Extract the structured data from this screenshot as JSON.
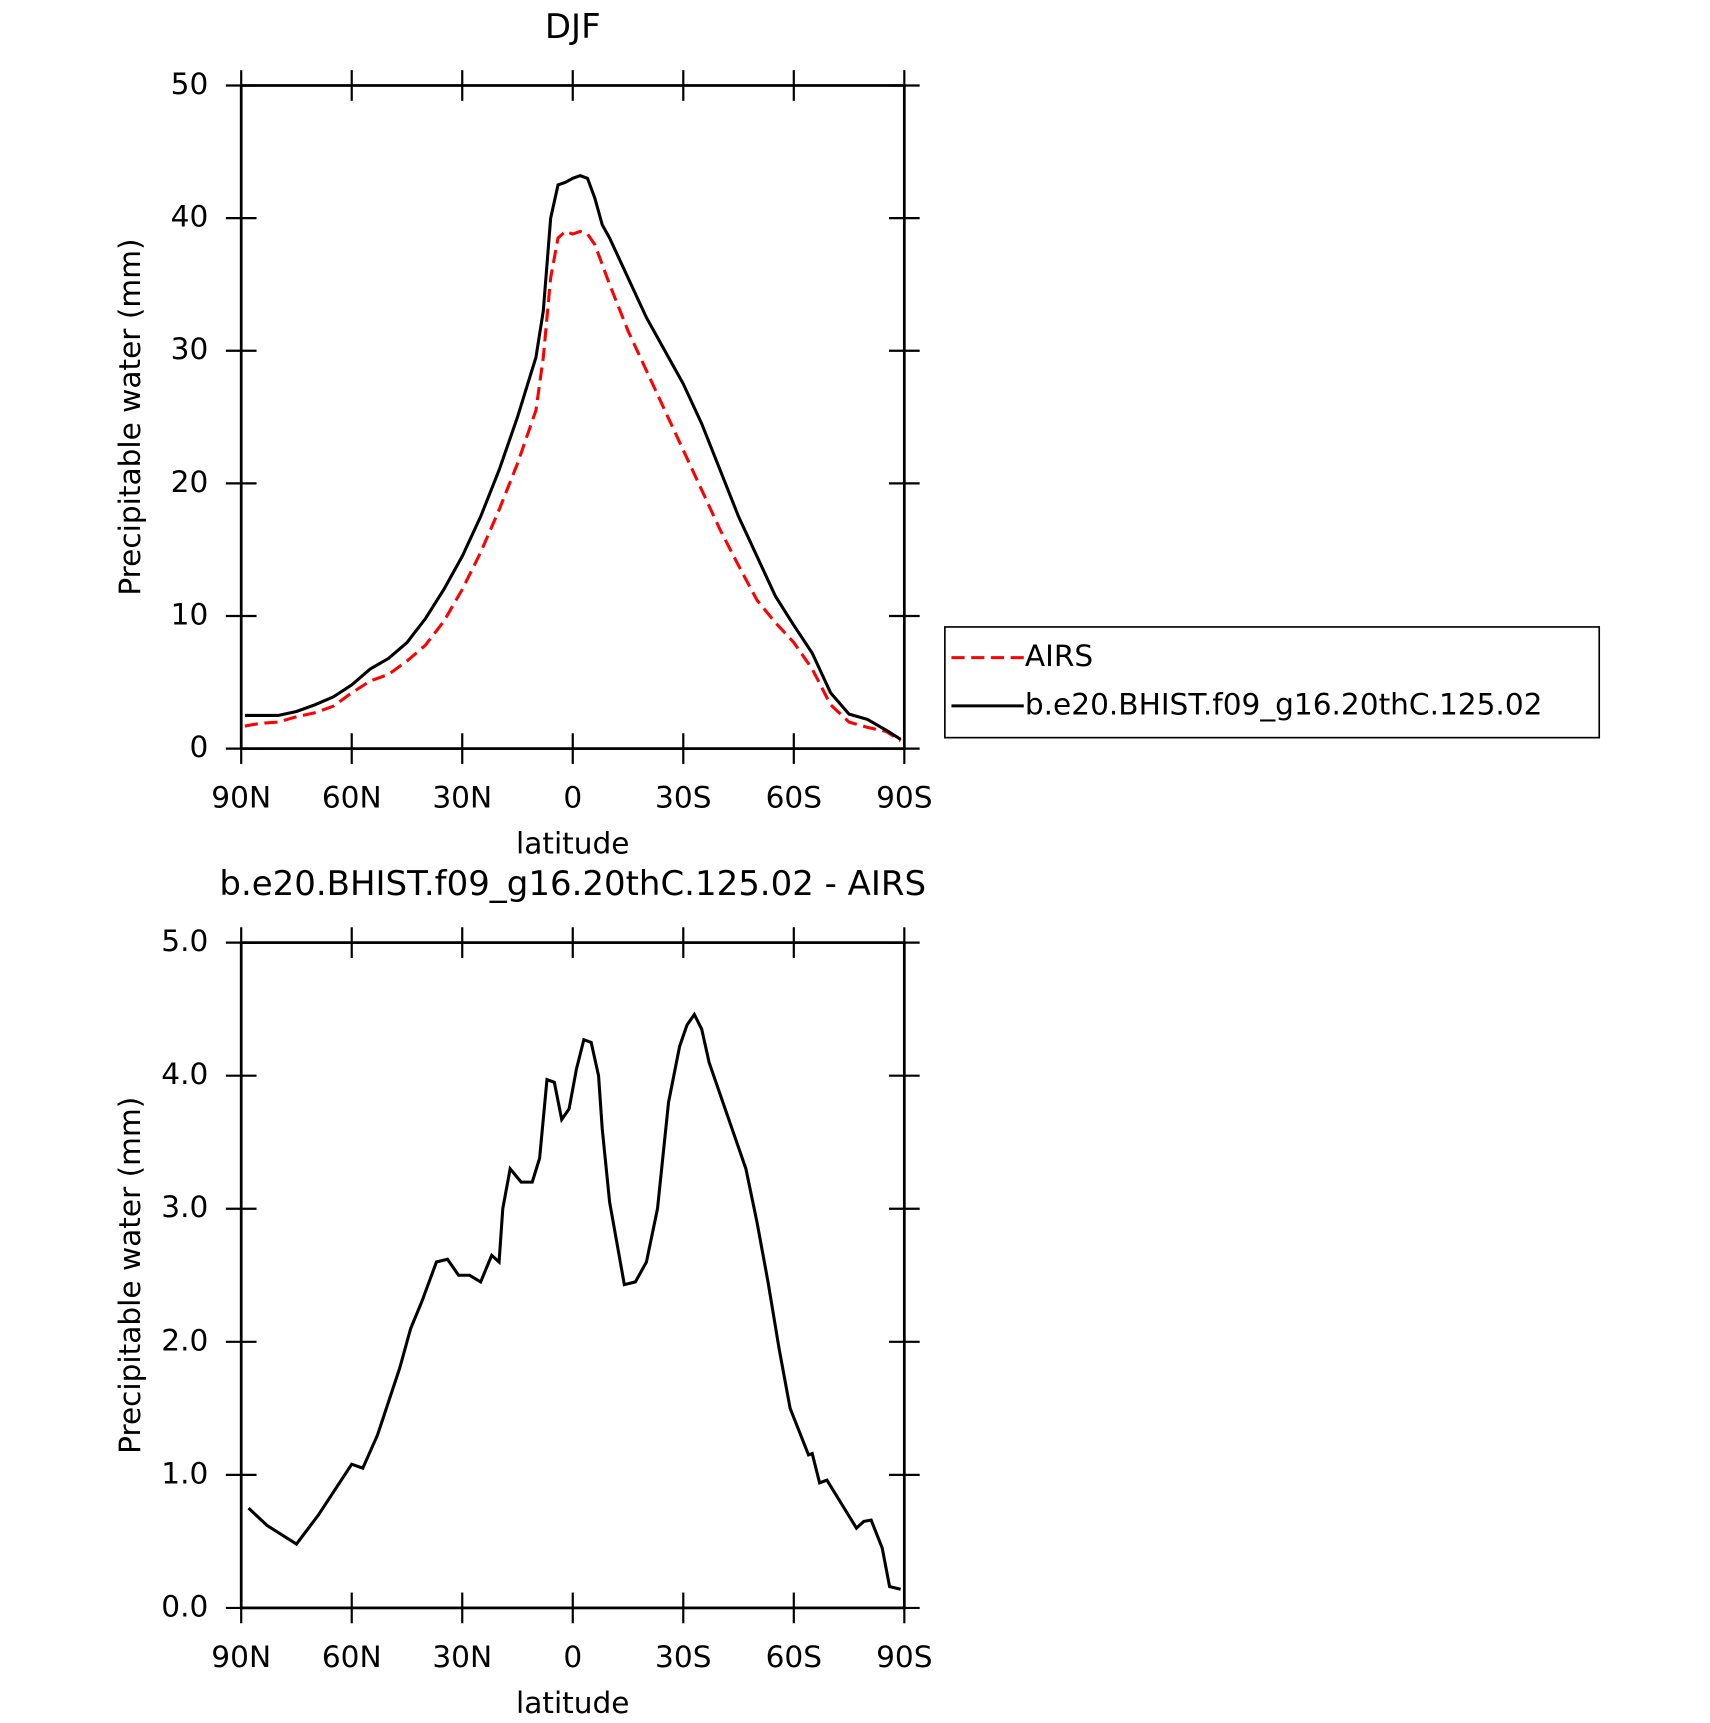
{
  "chart_data": [
    {
      "type": "line",
      "title": "DJF",
      "xlabel": "latitude",
      "ylabel": "Precipitable water (mm)",
      "x": [
        89,
        85,
        80,
        75,
        70,
        65,
        60,
        55,
        50,
        45,
        40,
        35,
        30,
        25,
        20,
        15,
        10,
        8,
        6,
        4,
        2,
        0,
        -2,
        -4,
        -6,
        -8,
        -10,
        -15,
        -20,
        -25,
        -30,
        -35,
        -40,
        -45,
        -50,
        -55,
        -60,
        -65,
        -70,
        -75,
        -80,
        -85,
        -89
      ],
      "series": [
        {
          "name": "AIRS",
          "color": "#ff0000",
          "dash": true,
          "values": [
            1.7,
            1.9,
            2.0,
            2.4,
            2.7,
            3.2,
            4.2,
            5.1,
            5.6,
            6.6,
            7.8,
            9.6,
            12.0,
            14.8,
            18.0,
            21.5,
            25.5,
            29.5,
            35.5,
            38.5,
            39.0,
            38.8,
            39.0,
            38.8,
            38.0,
            36.5,
            35.0,
            31.5,
            28.5,
            25.5,
            22.5,
            19.5,
            16.5,
            13.8,
            11.2,
            9.5,
            8.0,
            6.0,
            3.3,
            2.0,
            1.6,
            1.3,
            0.6
          ]
        },
        {
          "name": "b.e20.BHIST.f09_g16.20thC.125.02",
          "color": "#000000",
          "dash": false,
          "values": [
            2.5,
            2.5,
            2.5,
            2.8,
            3.3,
            3.9,
            4.8,
            6.0,
            6.8,
            8.0,
            9.8,
            12.0,
            14.5,
            17.5,
            21.0,
            25.0,
            29.5,
            33.0,
            40.0,
            42.5,
            42.7,
            43.0,
            43.2,
            43.0,
            41.5,
            39.5,
            38.5,
            35.5,
            32.5,
            30.0,
            27.5,
            24.5,
            21.0,
            17.5,
            14.5,
            11.5,
            9.3,
            7.2,
            4.2,
            2.6,
            2.2,
            1.4,
            0.7
          ]
        }
      ],
      "xlim": [
        90,
        -90
      ],
      "xticks": [
        {
          "value": 90,
          "label": "90N"
        },
        {
          "value": 60,
          "label": "60N"
        },
        {
          "value": 30,
          "label": "30N"
        },
        0,
        {
          "value": -30,
          "label": "30S"
        },
        {
          "value": -60,
          "label": "60S"
        },
        {
          "value": -90,
          "label": "90S"
        }
      ],
      "ylim": [
        0,
        50
      ],
      "yticks": [
        0,
        10,
        20,
        30,
        40,
        50
      ],
      "legend": "right"
    },
    {
      "type": "line",
      "title": "b.e20.BHIST.f09_g16.20thC.125.02 - AIRS",
      "xlabel": "latitude",
      "ylabel": "Precipitable water (mm)",
      "x": [
        88,
        83,
        75,
        69,
        60,
        57,
        53,
        47,
        44,
        41,
        37,
        34,
        31,
        28,
        25,
        22,
        20,
        19,
        17,
        14,
        11,
        9,
        7,
        5,
        3,
        1,
        -1,
        -3,
        -5,
        -7,
        -8,
        -10,
        -14,
        -17,
        -20,
        -23,
        -26,
        -29,
        -31,
        -33,
        -35,
        -37,
        -42,
        -47,
        -50,
        -53,
        -56,
        -59,
        -64,
        -65,
        -67,
        -69,
        -73,
        -77,
        -79,
        -81,
        -84,
        -86,
        -89
      ],
      "series": [
        {
          "color": "#000000",
          "dash": false,
          "values": [
            0.75,
            0.62,
            0.48,
            0.7,
            1.08,
            1.05,
            1.3,
            1.8,
            2.1,
            2.3,
            2.6,
            2.62,
            2.5,
            2.5,
            2.45,
            2.65,
            2.6,
            3.0,
            3.3,
            3.2,
            3.2,
            3.38,
            3.97,
            3.95,
            3.67,
            3.75,
            4.05,
            4.27,
            4.25,
            4.0,
            3.6,
            3.05,
            2.43,
            2.45,
            2.6,
            3.0,
            3.8,
            4.22,
            4.38,
            4.46,
            4.35,
            4.1,
            3.7,
            3.3,
            2.9,
            2.45,
            1.95,
            1.5,
            1.15,
            1.16,
            0.94,
            0.96,
            0.78,
            0.6,
            0.65,
            0.66,
            0.45,
            0.16,
            0.14
          ]
        }
      ],
      "xlim": [
        90,
        -90
      ],
      "xticks": [
        {
          "value": 90,
          "label": "90N"
        },
        {
          "value": 60,
          "label": "60N"
        },
        {
          "value": 30,
          "label": "30N"
        },
        0,
        {
          "value": -30,
          "label": "30S"
        },
        {
          "value": -60,
          "label": "60S"
        },
        {
          "value": -90,
          "label": "90S"
        }
      ],
      "ylim": [
        0,
        5
      ],
      "yticks": [
        {
          "value": 0,
          "label": "0.0"
        },
        {
          "value": 1,
          "label": "1.0"
        },
        {
          "value": 2,
          "label": "2.0"
        },
        {
          "value": 3,
          "label": "3.0"
        },
        {
          "value": 4,
          "label": "4.0"
        },
        {
          "value": 5,
          "label": "5.0"
        }
      ]
    }
  ]
}
